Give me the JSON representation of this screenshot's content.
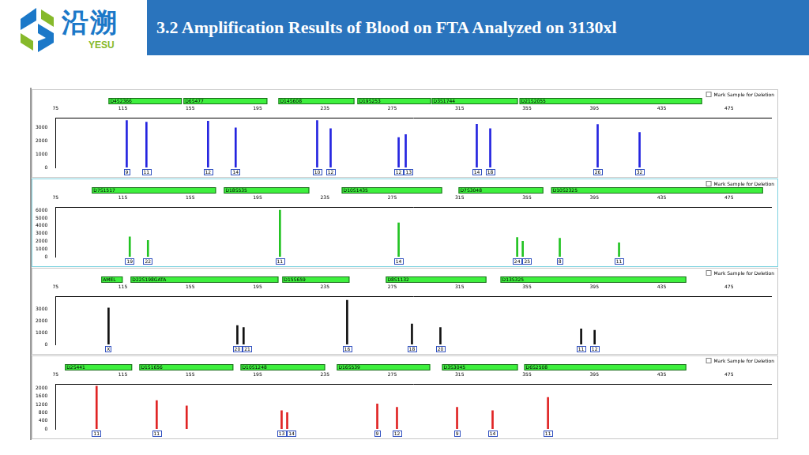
{
  "header": {
    "logo_text": "沿溯",
    "logo_subtext": "YESU",
    "title": "3.2 Amplification Results of Blood on FTA Analyzed on 3130xl"
  },
  "chart_data": [
    {
      "type": "bar",
      "color": "#2424e0",
      "grid": false,
      "checkbox_label": "Mark Sample for Deletion",
      "xlim": [
        75,
        500
      ],
      "xticks": [
        75,
        115,
        155,
        195,
        235,
        275,
        315,
        355,
        395,
        435,
        475
      ],
      "ylim": [
        0,
        3700
      ],
      "yticks": [
        0,
        1000,
        2000,
        3000
      ],
      "markers": [
        {
          "name": "D4S2366",
          "range": [
            106.5,
            150
          ]
        },
        {
          "name": "D6S477",
          "range": [
            151,
            200.8
          ]
        },
        {
          "name": "D14S608",
          "range": [
            207.4,
            252.5
          ]
        },
        {
          "name": "D19S253",
          "range": [
            254.3,
            298
          ]
        },
        {
          "name": "D3S1744",
          "range": [
            298.5,
            349.6
          ]
        },
        {
          "name": "D21S2055",
          "range": [
            350.6,
            459
          ]
        }
      ],
      "x": [
        117.3,
        129,
        165.6,
        182,
        230.4,
        238.4,
        278.8,
        283,
        325.2,
        333.2,
        397,
        421.9
      ],
      "values": [
        3500,
        3390,
        3450,
        2950,
        3500,
        2900,
        2240,
        2460,
        3220,
        2900,
        3200,
        2620
      ],
      "alleles": [
        "9",
        "11",
        "12",
        "14",
        "10",
        "12",
        "12",
        "13",
        "14",
        "18",
        "26",
        "32"
      ]
    },
    {
      "type": "bar",
      "color": "#22c322",
      "grid": false,
      "checkbox_label": "Mark Sample for Deletion",
      "xlim": [
        75,
        500
      ],
      "xticks": [
        75,
        115,
        155,
        195,
        235,
        275,
        315,
        355,
        395,
        435,
        475
      ],
      "ylim": [
        0,
        6400
      ],
      "yticks": [
        0,
        1000,
        2000,
        3000,
        4000,
        5000,
        6000
      ],
      "markers": [
        {
          "name": "D7S1517",
          "range": [
            96.6,
            170.3
          ]
        },
        {
          "name": "D18S535",
          "range": [
            175,
            225.7
          ]
        },
        {
          "name": "D10S1435",
          "range": [
            245,
            304.6
          ]
        },
        {
          "name": "D7S3048",
          "range": [
            314.4,
            364.7
          ]
        },
        {
          "name": "D10S2325",
          "range": [
            369.4,
            495.2
          ]
        }
      ],
      "x": [
        119.1,
        129.9,
        208.3,
        278.8,
        349.2,
        352.5,
        374.5,
        409.7
      ],
      "values": [
        2570,
        2100,
        6000,
        4380,
        2480,
        2000,
        2380,
        1810
      ],
      "alleles": [
        "19",
        "22",
        "11",
        "14",
        "24",
        "25",
        "8",
        "11"
      ]
    },
    {
      "type": "bar",
      "color": "#111111",
      "grid": false,
      "checkbox_label": "Mark Sample for Deletion",
      "xlim": [
        75,
        500
      ],
      "xticks": [
        75,
        115,
        155,
        195,
        235,
        275,
        315,
        355,
        395,
        435,
        475
      ],
      "ylim": [
        0,
        4100
      ],
      "yticks": [
        0,
        1000,
        2000,
        3000
      ],
      "markers": [
        {
          "name": "AMEL",
          "range": [
            102.2,
            114.9
          ]
        },
        {
          "name": "D22S198GATA",
          "range": [
            119.6,
            207.4
          ]
        },
        {
          "name": "D15S659",
          "range": [
            209.7,
            249.6
          ]
        },
        {
          "name": "D8S1132",
          "range": [
            271.2,
            330.9
          ]
        },
        {
          "name": "D13S325",
          "range": [
            339.3,
            449.6
          ]
        }
      ],
      "x": [
        106.5,
        183,
        186.7,
        248.2,
        286.7,
        303.6,
        387.2,
        395.2
      ],
      "values": [
        3110,
        1620,
        1440,
        3770,
        1740,
        1440,
        1320,
        1200
      ],
      "alleles": [
        "X",
        "20",
        "21",
        "16",
        "18",
        "20",
        "11",
        "12"
      ]
    },
    {
      "type": "bar",
      "color": "#e02424",
      "grid": false,
      "checkbox_label": "Mark Sample for Deletion",
      "xlim": [
        75,
        500
      ],
      "xticks": [
        75,
        115,
        155,
        195,
        235,
        275,
        315,
        355,
        395,
        435,
        475
      ],
      "ylim": [
        0,
        2200
      ],
      "yticks": [
        0,
        400,
        800,
        1200,
        1600,
        2000
      ],
      "markers": [
        {
          "name": "D2S441",
          "range": [
            80.6,
            120.5
          ]
        },
        {
          "name": "D1S1656",
          "range": [
            124.8,
            180.6
          ]
        },
        {
          "name": "D10S1248",
          "range": [
            184.9,
            235.1
          ]
        },
        {
          "name": "D16S539",
          "range": [
            242.1,
            297.5
          ]
        },
        {
          "name": "D3S3045",
          "range": [
            304.6,
            349.6
          ]
        },
        {
          "name": "D6S2508",
          "range": [
            353.4,
            449.6
          ]
        }
      ],
      "x": [
        99.4,
        135.1,
        152.9,
        209.3,
        212.6,
        266.1,
        277.8,
        313.5,
        334.6,
        367.5
      ],
      "values": [
        2100,
        1390,
        1130,
        900,
        800,
        1230,
        1060,
        1060,
        900,
        1550
      ],
      "alleles": [
        "11",
        "11",
        null,
        "13",
        "14",
        "9",
        "12",
        "9",
        "14",
        "11"
      ]
    }
  ]
}
